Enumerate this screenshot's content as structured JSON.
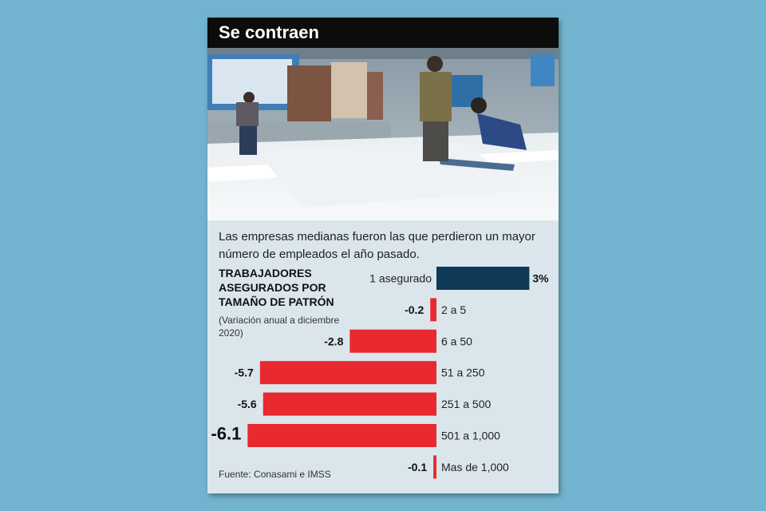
{
  "header": {
    "title": "Se contraen"
  },
  "intro": "Las empresas medianas fueron las que perdieron un mayor número de empleados el año pasado.",
  "chart_title": "TRABAJADORES ASEGURADOS POR TAMAÑO DE PATRÓN",
  "chart_subtitle": "(Variación anual a diciembre 2020)",
  "source": "Fuente: Conasami e IMSS",
  "colors": {
    "negative": "#e8292f",
    "positive": "#0e3a57",
    "title_bar": "#0c0c0c",
    "card": "#dbe6ec"
  },
  "chart_data": {
    "type": "bar",
    "orientation": "horizontal",
    "categories": [
      "1 asegurado",
      "2 a 5",
      "6 a 50",
      "51 a 250",
      "251 a 500",
      "501 a 1,000",
      "Mas de 1,000"
    ],
    "values": [
      3,
      -0.2,
      -2.8,
      -5.7,
      -5.6,
      -6.1,
      -0.1
    ],
    "value_labels": [
      "3%",
      "-0.2",
      "-2.8",
      "-5.7",
      "-5.6",
      "-6.1",
      "-0.1"
    ],
    "unit": "%",
    "grid": false,
    "legend": "none"
  }
}
